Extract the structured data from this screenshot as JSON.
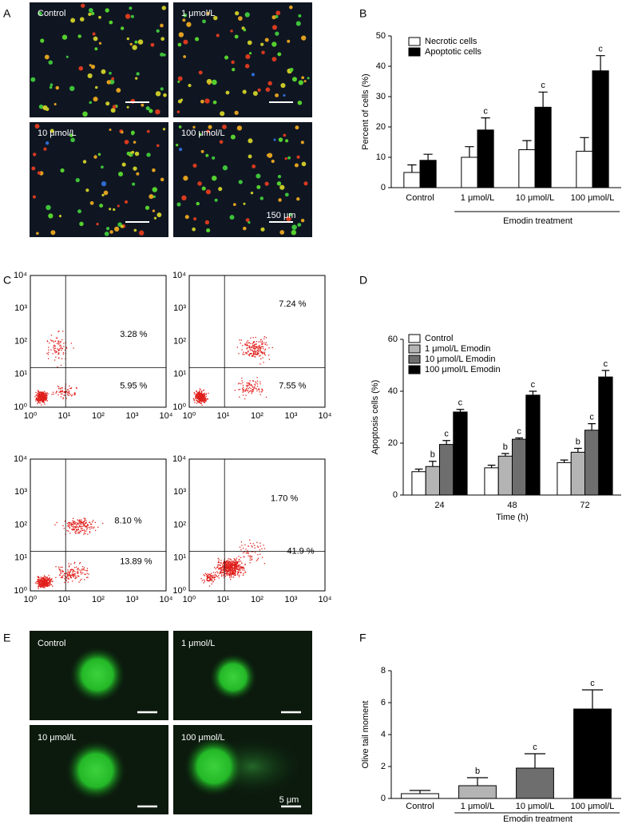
{
  "panel_labels": [
    "A",
    "B",
    "C",
    "D",
    "E",
    "F"
  ],
  "micrographs": {
    "labels": [
      "Control",
      "1 μmol/L",
      "10 μmol/L",
      "100 μmol/L"
    ],
    "scale_bar": "150 μm"
  },
  "flow_cytometry": {
    "axis_ticks": [
      "10⁰",
      "10¹",
      "10²",
      "10³",
      "10⁴"
    ],
    "plots": [
      {
        "upper_right": "3.28 %",
        "lower_right": "5.95 %"
      },
      {
        "upper_right": "7.24 %",
        "lower_right": "7.55 %"
      },
      {
        "upper_right": "8.10 %",
        "lower_right": "13.89 %"
      },
      {
        "upper_right": "1.70 %",
        "lower_right": "41.9 %"
      }
    ]
  },
  "comet_images": {
    "labels": [
      "Control",
      "1 μmol/L",
      "10 μmol/L",
      "100 μmol/L"
    ],
    "scale_bar": "5 μm"
  },
  "chart_data": [
    {
      "type": "bar",
      "y_label": "Percent of cells (%)",
      "group_label": "Emodin treatment",
      "categories": [
        "Control",
        "1 μmol/L",
        "10 μmol/L",
        "100 μmol/L"
      ],
      "series": [
        {
          "name": "Necrotic cells",
          "color": "#ffffff",
          "values": [
            5,
            10,
            12.5,
            12
          ],
          "errors": [
            2.5,
            3.5,
            3,
            4.5
          ]
        },
        {
          "name": "Apoptotic cells",
          "color": "#000000",
          "values": [
            9,
            19,
            26.5,
            38.5
          ],
          "errors": [
            2,
            4,
            5,
            5
          ],
          "annotations": [
            null,
            "c",
            "c",
            "c"
          ]
        }
      ],
      "ylim": [
        0,
        50
      ],
      "yticks": [
        0,
        10,
        20,
        30,
        40,
        50
      ],
      "legend": "upper-left"
    },
    {
      "type": "bar",
      "y_label": "Apoptosis cells (%)",
      "x_label": "Time (h)",
      "categories": [
        "24",
        "48",
        "72"
      ],
      "series": [
        {
          "name": "Control",
          "color": "#ffffff",
          "values": [
            9,
            10.5,
            12.5
          ],
          "errors": [
            1,
            1,
            1
          ]
        },
        {
          "name": "1 μmol/L Emodin",
          "color": "#b4b4b4",
          "values": [
            11,
            15,
            16.5
          ],
          "errors": [
            2,
            1,
            1.5
          ],
          "annotations": [
            "b",
            "b",
            "b"
          ]
        },
        {
          "name": "10 μmol/L Emodin",
          "color": "#6e6e6e",
          "values": [
            19.5,
            21.5,
            25
          ],
          "errors": [
            1.5,
            0.5,
            2.5
          ],
          "annotations": [
            "c",
            "c",
            "c"
          ]
        },
        {
          "name": "100 μmol/L Emodin",
          "color": "#000000",
          "values": [
            32,
            38.5,
            45.5
          ],
          "errors": [
            1,
            1.5,
            2.5
          ],
          "annotations": [
            "c",
            "c",
            "c"
          ]
        }
      ],
      "ylim": [
        0,
        60
      ],
      "yticks": [
        0,
        20,
        40,
        60
      ],
      "legend": "upper-left"
    },
    {
      "type": "bar",
      "y_label": "Olive tail moment",
      "group_label": "Emodin treatment",
      "categories": [
        "Control",
        "1 μmol/L",
        "10 μmol/L",
        "100 μmol/L"
      ],
      "values": [
        0.3,
        0.8,
        1.9,
        5.6
      ],
      "errors": [
        0.2,
        0.5,
        0.9,
        1.2
      ],
      "colors": [
        "#ffffff",
        "#b4b4b4",
        "#6e6e6e",
        "#000000"
      ],
      "annotations": [
        null,
        "b",
        "c",
        "c"
      ],
      "ylim": [
        0,
        8
      ],
      "yticks": [
        0,
        2,
        4,
        6,
        8
      ]
    }
  ]
}
